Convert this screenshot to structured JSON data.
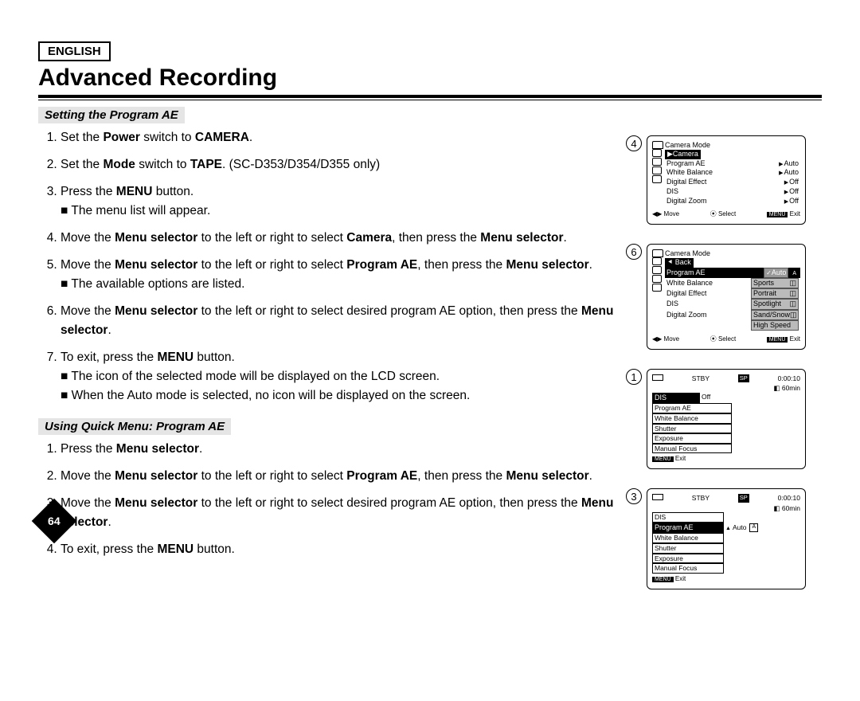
{
  "header": {
    "language": "ENGLISH",
    "title": "Advanced Recording"
  },
  "section1": {
    "heading": "Setting the Program AE",
    "s1": {
      "pre": "Set the ",
      "b1": "Power",
      "mid": " switch to ",
      "b2": "CAMERA",
      "post": "."
    },
    "s2": {
      "pre": "Set the ",
      "b1": "Mode",
      "mid": " switch to ",
      "b2": "TAPE",
      "post": ". (SC-D353/D354/D355 only)"
    },
    "s3": {
      "pre": "Press the ",
      "b1": "MENU",
      "post": " button."
    },
    "s3sub": "■ The menu list will appear.",
    "s4": {
      "pre": "Move the ",
      "b1": "Menu selector",
      "mid1": " to the left or right to select ",
      "b2": "Camera",
      "mid2": ", then press the ",
      "b3": "Menu selector",
      "post": "."
    },
    "s5": {
      "pre": "Move the ",
      "b1": "Menu selector",
      "mid1": " to the left or right to select ",
      "b2": "Program AE",
      "mid2": ", then press the ",
      "b3": "Menu selector",
      "post": "."
    },
    "s5sub": "■ The available options are listed.",
    "s6": {
      "pre": "Move the ",
      "b1": "Menu selector",
      "mid1": " to the left or right to select desired program AE option, then press the ",
      "b2": "Menu selector",
      "post": "."
    },
    "s7": {
      "pre": "To exit, press the ",
      "b1": "MENU",
      "post": " button."
    },
    "s7sub1": "■ The icon of the selected mode will be displayed on the LCD screen.",
    "s7sub2": "■ When the Auto mode is selected, no icon will be displayed on the screen."
  },
  "section2": {
    "heading": "Using Quick Menu: Program AE",
    "q1": {
      "pre": "Press the ",
      "b1": "Menu selector",
      "post": "."
    },
    "q2": {
      "pre": "Move the ",
      "b1": "Menu selector",
      "mid1": " to the left or right to select ",
      "b2": "Program AE",
      "mid2": ", then press the ",
      "b3": "Menu selector",
      "post": "."
    },
    "q3": {
      "pre": "Move the ",
      "b1": "Menu selector",
      "mid": " to the left or right to select desired program AE option, then press the ",
      "b2": "Menu selector",
      "post": "."
    },
    "q4": {
      "pre": "To exit, press the ",
      "b1": "MENU",
      "post": " button."
    }
  },
  "dg4": {
    "num": "4",
    "mode": "Camera Mode",
    "sel": "▶Camera",
    "rows": [
      {
        "l": "Program AE",
        "r": "Auto"
      },
      {
        "l": "White Balance",
        "r": "Auto"
      },
      {
        "l": "Digital Effect",
        "r": "Off"
      },
      {
        "l": "DIS",
        "r": "Off"
      },
      {
        "l": "Digital Zoom",
        "r": "Off"
      }
    ],
    "f1": "Move",
    "f2": "Select",
    "f3": "Exit",
    "mkey": "MENU"
  },
  "dg6": {
    "num": "6",
    "mode": "Camera Mode",
    "back": "Back",
    "sel": "Program AE",
    "selval": "Auto",
    "selbadge": "A",
    "rows": [
      {
        "l": "White Balance",
        "r": "Sports"
      },
      {
        "l": "Digital Effect",
        "r": "Portrait"
      },
      {
        "l": "DIS",
        "r": "Spotlight"
      },
      {
        "l": "Digital Zoom",
        "r": "Sand/Snow"
      }
    ],
    "extra": "High Speed",
    "f1": "Move",
    "f2": "Select",
    "f3": "Exit",
    "mkey": "MENU"
  },
  "dg1": {
    "num": "1",
    "stby": "STBY",
    "sp": "SP",
    "time": "0:00:10",
    "rem": "60min",
    "rows": [
      "DIS",
      "Program AE",
      "White Balance",
      "Shutter",
      "Exposure",
      "Manual Focus"
    ],
    "hl": "DIS",
    "hlr": "Off",
    "exit": "Exit",
    "mkey": "MENU"
  },
  "dg3": {
    "num": "3",
    "stby": "STBY",
    "sp": "SP",
    "time": "0:00:10",
    "rem": "60min",
    "rows": [
      "DIS",
      "Program AE",
      "White Balance",
      "Shutter",
      "Exposure",
      "Manual Focus"
    ],
    "hl": "Program AE",
    "hlr": "Auto",
    "badge": "A",
    "exit": "Exit",
    "mkey": "MENU"
  },
  "pageNumber": "64"
}
